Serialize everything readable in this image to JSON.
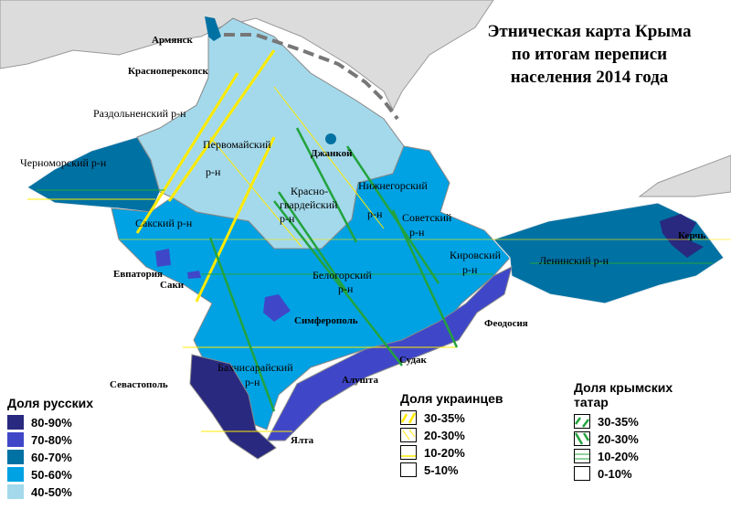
{
  "title": [
    "Этническая карта Крыма",
    "по итогам переписи",
    "населения 2014 года"
  ],
  "colors": {
    "r80_90": "#29297f",
    "r70_80": "#3f47c8",
    "r60_70": "#0071a3",
    "r50_60": "#00a2e3",
    "r40_50": "#a3d9eb",
    "mainland": "#dcdcdc",
    "ukr": "#ffeb00",
    "tatar": "#23a33d"
  },
  "labels": {
    "armyansk": "Армянск",
    "krasnoperekopsk": "Красноперекопск",
    "razdolnensky": "Раздольненский р-н",
    "chernomorsky": "Черноморский р-н",
    "pervomaisky1": "Первомайский",
    "pervomaisky2": "р-н",
    "dzhankoy": "Джанкой",
    "krasnogv1": "Красно-",
    "krasnogv2": "гвардейский",
    "krasnogv3": "р-н",
    "nizhnegorsky1": "Нижнегорский",
    "nizhnegorsky2": "р-н",
    "sovetsky1": "Советский",
    "sovetsky2": "р-н",
    "saksky": "Сакский р-н",
    "evpatoria": "Евпатория",
    "saki": "Саки",
    "belogorsky1": "Белогорский",
    "belogorsky2": "р-н",
    "kirovsky1": "Кировский",
    "kirovsky2": "р-н",
    "leninsky": "Ленинский р-н",
    "kerch": "Керчь",
    "simferopol": "Симферополь",
    "feodosia": "Феодосия",
    "sudak": "Судак",
    "bakhch1": "Бахчисарайский",
    "bakhch2": "р-н",
    "alushta": "Алушта",
    "sevastopol": "Севастополь",
    "yalta": "Ялта"
  },
  "legend_russians": {
    "title": "Доля русских",
    "items": [
      {
        "label": "80-90%",
        "color": "#29297f"
      },
      {
        "label": "70-80%",
        "color": "#3f47c8"
      },
      {
        "label": "60-70%",
        "color": "#0071a3"
      },
      {
        "label": "50-60%",
        "color": "#00a2e3"
      },
      {
        "label": "40-50%",
        "color": "#a3d9eb"
      }
    ]
  },
  "legend_ukrainians": {
    "title": "Доля украинцев",
    "items": [
      {
        "label": "30-35%"
      },
      {
        "label": "20-30%"
      },
      {
        "label": "10-20%"
      },
      {
        "label": "5-10%"
      }
    ]
  },
  "legend_tatars": {
    "title1": "Доля крымских",
    "title2": "татар",
    "items": [
      {
        "label": "30-35%"
      },
      {
        "label": "20-30%"
      },
      {
        "label": "10-20%"
      },
      {
        "label": "0-10%"
      }
    ]
  }
}
